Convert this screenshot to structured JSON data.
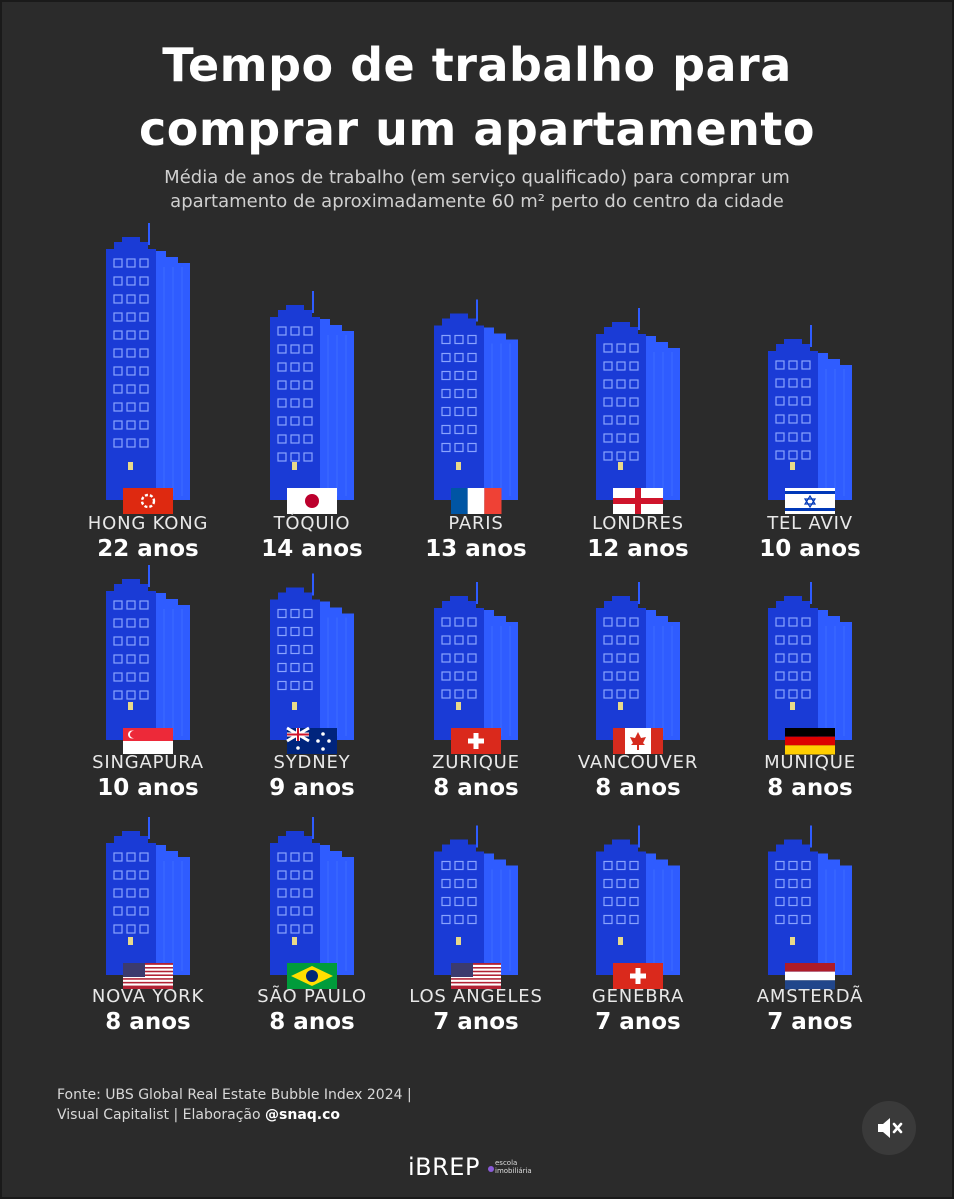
{
  "title_line1": "Tempo de trabalho para",
  "title_line2": "comprar um apartamento",
  "subtitle_line1": "Média de anos de trabalho (em serviço qualificado) para comprar um",
  "subtitle_line2": "apartamento de aproximadamente 60 m² perto do centro da cidade",
  "source_line1": "Fonte: UBS Global Real Estate Bubble Index 2024 |",
  "source_line2_prefix": "Visual Capitalist | Elaboração ",
  "source_line2_handle": "@snaq.co",
  "logo": "iBREP",
  "logo_sub_line1": "escola",
  "logo_sub_line2": "imobiliária",
  "mute_icon": "volume-mute-icon",
  "colors": {
    "background": "#2b2b2b",
    "building_front": "#1a3bd6",
    "building_side": "#2f5cff",
    "window": "#2b2b2b",
    "lit_window": "#e8d98a"
  },
  "chart_data": {
    "type": "bar",
    "title": "Tempo de trabalho para comprar um apartamento",
    "ylabel": "anos",
    "unit_label": "anos",
    "categories": [
      "HONG KONG",
      "TÓQUIO",
      "PARIS",
      "LONDRES",
      "TEL AVIV",
      "SINGAPURA",
      "SYDNEY",
      "ZURIQUE",
      "VANCOUVER",
      "MUNIQUE",
      "NOVA YORK",
      "SÃO PAULO",
      "LOS ANGELES",
      "GENEBRA",
      "AMSTERDÃ"
    ],
    "values": [
      22,
      14,
      13,
      12,
      10,
      10,
      9,
      8,
      8,
      8,
      8,
      8,
      7,
      7,
      7
    ],
    "labels": [
      "22 anos",
      "14 anos",
      "13 anos",
      "12 anos",
      "10 anos",
      "10 anos",
      "9 anos",
      "8 anos",
      "8 anos",
      "8 anos",
      "8 anos",
      "8 anos",
      "7 anos",
      "7 anos",
      "7 anos"
    ],
    "flags": [
      "hong-kong",
      "japan",
      "france",
      "england",
      "israel",
      "singapore",
      "australia",
      "switzerland",
      "canada",
      "germany",
      "usa",
      "brazil",
      "usa",
      "switzerland",
      "netherlands"
    ]
  }
}
